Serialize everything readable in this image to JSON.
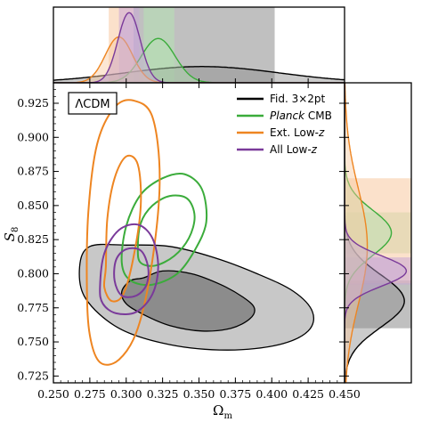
{
  "chart_data": {
    "type": "corner-contour",
    "model_label": "ΛCDM",
    "xlabel": "Ω",
    "xlabel_sub": "m",
    "ylabel": "S",
    "ylabel_sub": "8",
    "xlim": [
      0.25,
      0.45
    ],
    "ylim": [
      0.72,
      0.94
    ],
    "xticks": [
      "0.250",
      "0.275",
      "0.300",
      "0.325",
      "0.350",
      "0.375",
      "0.400",
      "0.425",
      "0.450"
    ],
    "yticks": [
      "0.725",
      "0.750",
      "0.775",
      "0.800",
      "0.825",
      "0.850",
      "0.875",
      "0.900",
      "0.925"
    ],
    "legend_position": "top-right",
    "series": [
      {
        "key": "fid",
        "legend": "Fid. 3×2pt",
        "color": "#000000",
        "fill": "#8c8c8c",
        "omega_m": {
          "mean": 0.352,
          "sigma68": [
            0.305,
            0.402
          ]
        },
        "s8": {
          "mean": 0.78,
          "sigma68": [
            0.76,
            0.795
          ]
        },
        "contour68": [
          [
            0.312,
            0.797
          ],
          [
            0.325,
            0.802
          ],
          [
            0.345,
            0.8
          ],
          [
            0.365,
            0.792
          ],
          [
            0.38,
            0.783
          ],
          [
            0.388,
            0.775
          ],
          [
            0.385,
            0.767
          ],
          [
            0.372,
            0.76
          ],
          [
            0.352,
            0.758
          ],
          [
            0.33,
            0.762
          ],
          [
            0.312,
            0.77
          ],
          [
            0.3,
            0.778
          ],
          [
            0.297,
            0.787
          ],
          [
            0.303,
            0.795
          ]
        ],
        "contour95": [
          [
            0.275,
            0.82
          ],
          [
            0.3,
            0.821
          ],
          [
            0.33,
            0.82
          ],
          [
            0.36,
            0.812
          ],
          [
            0.39,
            0.8
          ],
          [
            0.415,
            0.787
          ],
          [
            0.428,
            0.772
          ],
          [
            0.425,
            0.758
          ],
          [
            0.405,
            0.748
          ],
          [
            0.37,
            0.744
          ],
          [
            0.33,
            0.748
          ],
          [
            0.295,
            0.76
          ],
          [
            0.272,
            0.782
          ],
          [
            0.268,
            0.805
          ]
        ]
      },
      {
        "key": "planck",
        "legend_italic": "Planck",
        "legend": "CMB",
        "color": "#3bac3b",
        "fill": "#b5e1b3",
        "omega_m": {
          "mean": 0.322,
          "sigma68": [
            0.312,
            0.333
          ]
        },
        "s8": {
          "mean": 0.83,
          "sigma68": [
            0.815,
            0.845
          ]
        },
        "contour68": [
          [
            0.308,
            0.818
          ],
          [
            0.31,
            0.837
          ],
          [
            0.318,
            0.85
          ],
          [
            0.33,
            0.857
          ],
          [
            0.342,
            0.855
          ],
          [
            0.347,
            0.842
          ],
          [
            0.343,
            0.826
          ],
          [
            0.333,
            0.813
          ],
          [
            0.32,
            0.806
          ],
          [
            0.31,
            0.808
          ]
        ],
        "contour95": [
          [
            0.297,
            0.808
          ],
          [
            0.3,
            0.835
          ],
          [
            0.31,
            0.858
          ],
          [
            0.325,
            0.87
          ],
          [
            0.34,
            0.873
          ],
          [
            0.352,
            0.862
          ],
          [
            0.355,
            0.838
          ],
          [
            0.347,
            0.817
          ],
          [
            0.335,
            0.8
          ],
          [
            0.318,
            0.792
          ],
          [
            0.303,
            0.795
          ]
        ]
      },
      {
        "key": "ext",
        "legend": "Ext. Low-",
        "legend_italic_suffix": "z",
        "color": "#ee8521",
        "fill": "#f8c9a0",
        "omega_m": {
          "mean": 0.295,
          "sigma68": [
            0.288,
            0.305
          ]
        },
        "s8": {
          "mean": 0.82,
          "sigma68": [
            0.793,
            0.87
          ]
        },
        "contour68": [
          [
            0.286,
            0.805
          ],
          [
            0.287,
            0.84
          ],
          [
            0.292,
            0.87
          ],
          [
            0.3,
            0.886
          ],
          [
            0.308,
            0.88
          ],
          [
            0.31,
            0.85
          ],
          [
            0.305,
            0.812
          ],
          [
            0.298,
            0.785
          ],
          [
            0.29,
            0.78
          ],
          [
            0.285,
            0.79
          ]
        ],
        "contour95": [
          [
            0.273,
            0.79
          ],
          [
            0.274,
            0.845
          ],
          [
            0.28,
            0.895
          ],
          [
            0.292,
            0.922
          ],
          [
            0.305,
            0.927
          ],
          [
            0.318,
            0.915
          ],
          [
            0.323,
            0.87
          ],
          [
            0.318,
            0.81
          ],
          [
            0.308,
            0.76
          ],
          [
            0.295,
            0.737
          ],
          [
            0.282,
            0.735
          ],
          [
            0.275,
            0.755
          ]
        ]
      },
      {
        "key": "all",
        "legend": "All Low-",
        "legend_italic_suffix": "z",
        "color": "#7a3a9a",
        "fill": "#c8a8d6",
        "omega_m": {
          "mean": 0.302,
          "sigma68": [
            0.295,
            0.309
          ]
        },
        "s8": {
          "mean": 0.802,
          "sigma68": [
            0.792,
            0.812
          ]
        },
        "contour68": [
          [
            0.292,
            0.795
          ],
          [
            0.293,
            0.81
          ],
          [
            0.3,
            0.818
          ],
          [
            0.31,
            0.817
          ],
          [
            0.315,
            0.805
          ],
          [
            0.314,
            0.792
          ],
          [
            0.307,
            0.784
          ],
          [
            0.297,
            0.784
          ]
        ],
        "contour95": [
          [
            0.282,
            0.79
          ],
          [
            0.285,
            0.815
          ],
          [
            0.295,
            0.832
          ],
          [
            0.308,
            0.836
          ],
          [
            0.318,
            0.826
          ],
          [
            0.322,
            0.805
          ],
          [
            0.318,
            0.785
          ],
          [
            0.307,
            0.772
          ],
          [
            0.293,
            0.771
          ],
          [
            0.284,
            0.778
          ]
        ]
      }
    ]
  }
}
